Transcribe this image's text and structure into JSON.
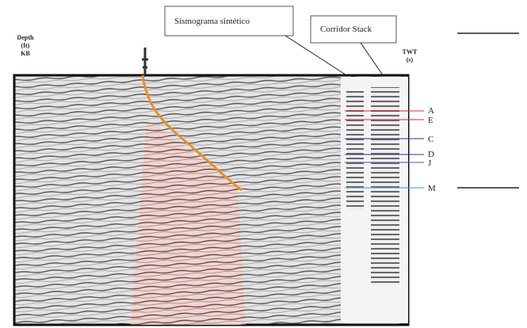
{
  "depth_label": [
    "Depth",
    "(ft)",
    "KB"
  ],
  "twt_label": [
    "TWT",
    "(s)"
  ],
  "callouts": [
    "Sismograma sintético",
    "Corridor Stack"
  ],
  "horizons": [
    "A",
    "E",
    "C",
    "D",
    "J",
    "M"
  ]
}
